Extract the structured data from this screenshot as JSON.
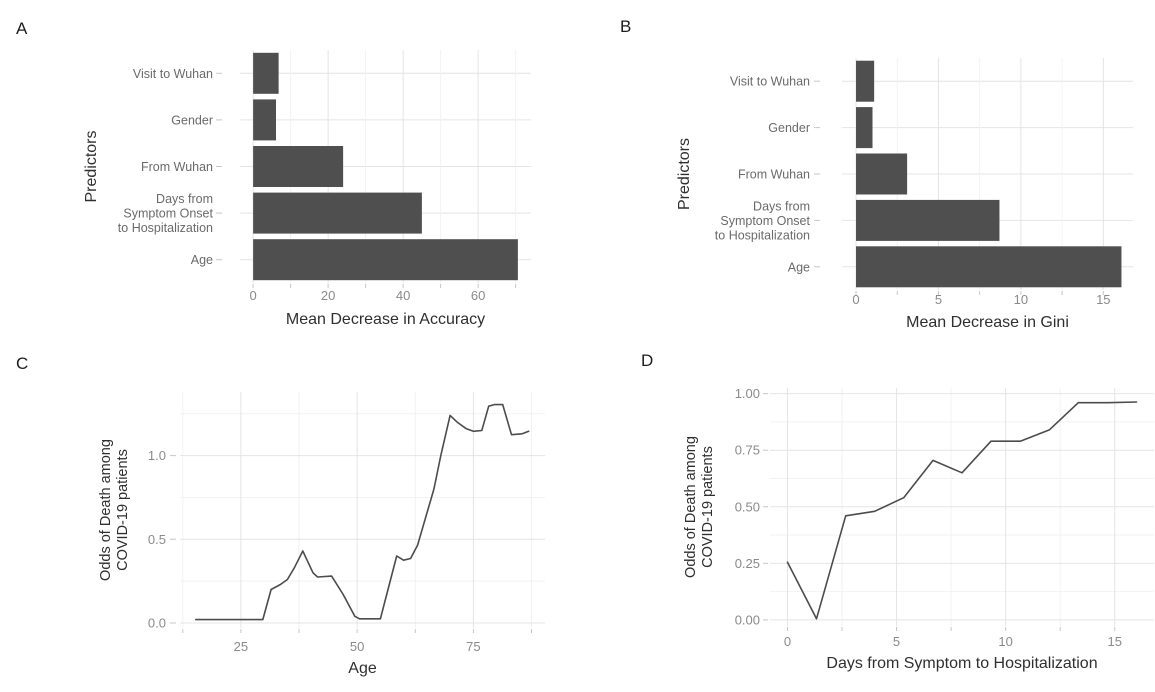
{
  "figure": {
    "background": "#ffffff",
    "panels": [
      {
        "id": "A",
        "label": "A"
      },
      {
        "id": "B",
        "label": "B"
      },
      {
        "id": "C",
        "label": "C"
      },
      {
        "id": "D",
        "label": "D"
      }
    ]
  },
  "colors": {
    "bar_fill": "#4f4f4f",
    "line_stroke": "#4c4c4c",
    "grid_major": "#e4e4e4",
    "grid_minor": "#f2f2f2",
    "tick_mark": "#c6c6c6",
    "tick_text": "#8a8a8a",
    "category_text": "#6a6a6a",
    "axis_title_text": "#2f2f2f"
  },
  "chart_data": [
    {
      "panel": "A",
      "type": "bar",
      "orientation": "horizontal",
      "title": "",
      "xlabel": "Mean Decrease in Accuracy",
      "ylabel": "Predictors",
      "categories": [
        "Visit to Wuhan",
        "Gender",
        "From Wuhan",
        "Days from Symptom Onset to Hospitalization",
        "Age"
      ],
      "category_lines": [
        [
          "Visit to Wuhan"
        ],
        [
          "Gender"
        ],
        [
          "From Wuhan"
        ],
        [
          "Days from",
          "Symptom Onset",
          "to Hospitalization"
        ],
        [
          "Age"
        ]
      ],
      "values": [
        6.8,
        6.1,
        24,
        45,
        70.6
      ],
      "xticks": [
        0,
        20,
        40,
        60
      ],
      "xtick_labels": [
        "0",
        "20",
        "40",
        "60"
      ],
      "xminor": [
        10,
        30,
        50,
        70
      ],
      "xlim": [
        -3.5,
        74.1
      ],
      "grid": true,
      "legend": "none"
    },
    {
      "panel": "B",
      "type": "bar",
      "orientation": "horizontal",
      "title": "",
      "xlabel": "Mean Decrease in Gini",
      "ylabel": "Predictors",
      "categories": [
        "Visit to Wuhan",
        "Gender",
        "From Wuhan",
        "Days from Symptom Onset to Hospitalization",
        "Age"
      ],
      "category_lines": [
        [
          "Visit to Wuhan"
        ],
        [
          "Gender"
        ],
        [
          "From Wuhan"
        ],
        [
          "Days from",
          "Symptom Onset",
          "to Hospitalization"
        ],
        [
          "Age"
        ]
      ],
      "values": [
        1.1,
        1.0,
        3.1,
        8.7,
        16.1
      ],
      "xticks": [
        0,
        5,
        10,
        15
      ],
      "xtick_labels": [
        "0",
        "5",
        "10",
        "15"
      ],
      "xminor": [
        2.5,
        7.5,
        12.5
      ],
      "xlim": [
        -0.85,
        16.8
      ],
      "grid": true,
      "legend": "none"
    },
    {
      "panel": "C",
      "type": "line",
      "title": "",
      "xlabel": "Age",
      "ylabel": "Odds of Death among COVID-19 patients",
      "ylabel_lines": [
        "Odds of Death among",
        "COVID-19 patients"
      ],
      "x": [
        15.3,
        29.7,
        31.5,
        33.5,
        35,
        36.5,
        38.3,
        40.5,
        41.5,
        44.5,
        47,
        49.5,
        50.5,
        55,
        58.5,
        60,
        61.5,
        63,
        66.5,
        68,
        70,
        71.5,
        73.5,
        75,
        76.8,
        78.3,
        79.5,
        81.3,
        83.2,
        85.5,
        86.9
      ],
      "y": [
        0.02,
        0.02,
        0.2,
        0.23,
        0.26,
        0.33,
        0.43,
        0.3,
        0.275,
        0.28,
        0.17,
        0.04,
        0.025,
        0.025,
        0.4,
        0.375,
        0.385,
        0.465,
        0.8,
        1.0,
        1.24,
        1.2,
        1.16,
        1.145,
        1.15,
        1.295,
        1.305,
        1.305,
        1.125,
        1.13,
        1.145
      ],
      "xticks": [
        25,
        50,
        75
      ],
      "xtick_labels": [
        "25",
        "50",
        "75"
      ],
      "xminor": [
        12.5,
        37.5,
        62.5,
        87.5
      ],
      "yticks": [
        0.0,
        0.5,
        1.0
      ],
      "ytick_labels": [
        "0.0",
        "0.5",
        "1.0"
      ],
      "yminor": [
        0.25,
        0.75,
        1.25
      ],
      "xlim": [
        11.9,
        90.4
      ],
      "ylim": [
        -0.03,
        1.38
      ],
      "grid": true,
      "legend": "none"
    },
    {
      "panel": "D",
      "type": "line",
      "title": "",
      "xlabel": "Days from Symptom to Hospitalization",
      "ylabel": "Odds of Death among COVID-19 patients",
      "ylabel_lines": [
        "Odds of Death among",
        "COVID-19 patients"
      ],
      "x": [
        0,
        1.33,
        2.67,
        4,
        5.33,
        6.67,
        8,
        9.33,
        10.67,
        12,
        13.33,
        14.67,
        16
      ],
      "y": [
        0.255,
        0.005,
        0.46,
        0.48,
        0.54,
        0.705,
        0.65,
        0.79,
        0.79,
        0.84,
        0.96,
        0.96,
        0.963
      ],
      "xticks": [
        0,
        5,
        10,
        15
      ],
      "xtick_labels": [
        "0",
        "5",
        "10",
        "15"
      ],
      "xminor": [
        2.5,
        7.5,
        12.5
      ],
      "yticks": [
        0,
        0.25,
        0.5,
        0.75,
        1.0
      ],
      "ytick_labels": [
        "0.00",
        "0.25",
        "0.50",
        "0.75",
        "1.00"
      ],
      "yminor": [
        0.125,
        0.375,
        0.625,
        0.875
      ],
      "xlim": [
        -0.8,
        16.8
      ],
      "ylim": [
        -0.027,
        1.025
      ],
      "grid": true,
      "legend": "none"
    }
  ]
}
